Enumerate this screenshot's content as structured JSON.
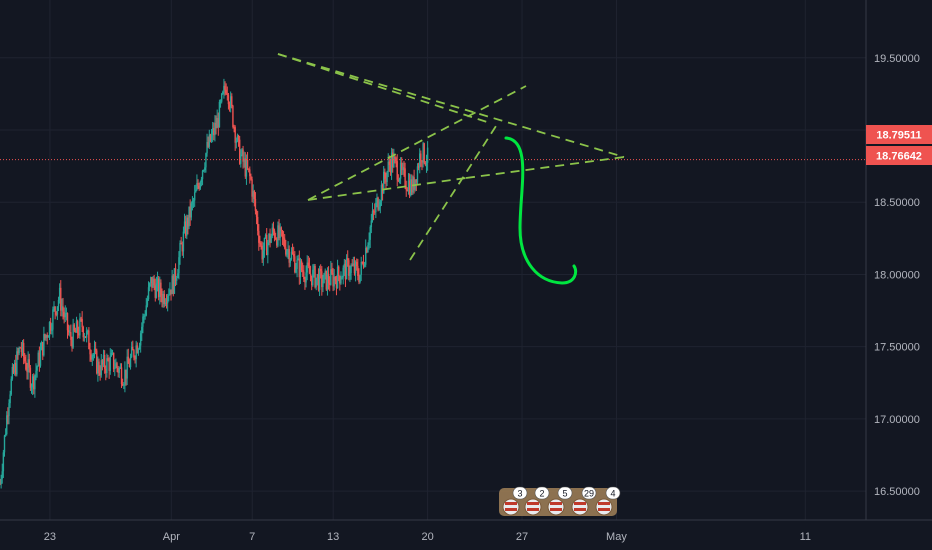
{
  "chart_data": {
    "type": "candlestick",
    "colors": {
      "background": "#131722",
      "grid": "#1f2330",
      "axis_text": "#b2b5be",
      "up": "#26a69a",
      "down": "#ef5350",
      "price_line": "#ef5350",
      "drawing_dashed": "#8bc34a",
      "drawing_curve": "#00e640"
    },
    "ylim": [
      16.3,
      19.9
    ],
    "y_ticks": [
      "19.50000",
      "19.00000",
      "18.50000",
      "18.00000",
      "17.50000",
      "17.00000",
      "16.50000"
    ],
    "y_tick_values": [
      19.5,
      19.0,
      18.5,
      18.0,
      17.5,
      17.0,
      16.5
    ],
    "x_ticks": [
      "23",
      "Apr",
      "7",
      "13",
      "20",
      "27",
      "May",
      "11"
    ],
    "x_tick_values": [
      0,
      9,
      15,
      21,
      28,
      35,
      42,
      56
    ],
    "xlim": [
      -3.7,
      60.5
    ],
    "last_price": "18.79511",
    "last_price_value": 18.79511,
    "second_price": "18.76642",
    "second_price_value": 18.76642,
    "anchors": [
      {
        "x": -3.7,
        "y": 16.55
      },
      {
        "x": -3.0,
        "y": 17.2
      },
      {
        "x": -2.2,
        "y": 17.5
      },
      {
        "x": -1.3,
        "y": 17.25
      },
      {
        "x": -0.4,
        "y": 17.55
      },
      {
        "x": 0.7,
        "y": 17.85
      },
      {
        "x": 1.5,
        "y": 17.55
      },
      {
        "x": 2.4,
        "y": 17.65
      },
      {
        "x": 3.6,
        "y": 17.35
      },
      {
        "x": 4.6,
        "y": 17.4
      },
      {
        "x": 5.5,
        "y": 17.3
      },
      {
        "x": 6.6,
        "y": 17.55
      },
      {
        "x": 7.5,
        "y": 17.95
      },
      {
        "x": 8.4,
        "y": 17.85
      },
      {
        "x": 9.2,
        "y": 17.95
      },
      {
        "x": 10.0,
        "y": 18.3
      },
      {
        "x": 10.8,
        "y": 18.55
      },
      {
        "x": 11.6,
        "y": 18.85
      },
      {
        "x": 12.4,
        "y": 19.05
      },
      {
        "x": 13.1,
        "y": 19.33
      },
      {
        "x": 14.0,
        "y": 18.85
      },
      {
        "x": 14.9,
        "y": 18.65
      },
      {
        "x": 15.7,
        "y": 18.15
      },
      {
        "x": 16.6,
        "y": 18.3
      },
      {
        "x": 17.5,
        "y": 18.2
      },
      {
        "x": 18.4,
        "y": 18.05
      },
      {
        "x": 19.3,
        "y": 18.0
      },
      {
        "x": 20.2,
        "y": 17.95
      },
      {
        "x": 21.2,
        "y": 17.98
      },
      {
        "x": 22.2,
        "y": 18.05
      },
      {
        "x": 23.0,
        "y": 18.0
      },
      {
        "x": 23.8,
        "y": 18.35
      },
      {
        "x": 24.6,
        "y": 18.6
      },
      {
        "x": 25.3,
        "y": 18.8
      },
      {
        "x": 26.1,
        "y": 18.68
      },
      {
        "x": 26.9,
        "y": 18.6
      },
      {
        "x": 27.5,
        "y": 18.85
      },
      {
        "x": 28.0,
        "y": 18.8
      }
    ]
  },
  "event_badges": [
    "3",
    "2",
    "5",
    "29",
    "4"
  ]
}
